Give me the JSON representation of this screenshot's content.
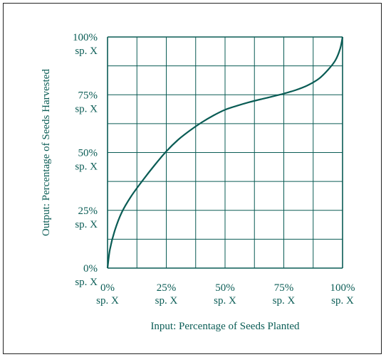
{
  "colors": {
    "line": "#0a5c55",
    "text": "#0a5c55",
    "frame": "#222222"
  },
  "chart_data": {
    "type": "line",
    "xlabel": "Input:  Percentage of Seeds Planted",
    "ylabel": "Output:  Percentage of Seeds Harvested",
    "xlim": [
      0,
      100
    ],
    "ylim": [
      0,
      100
    ],
    "grid": true,
    "x_ticks": [
      {
        "value": 0,
        "pct": "0%",
        "unit": "sp. X"
      },
      {
        "value": 25,
        "pct": "25%",
        "unit": "sp. X"
      },
      {
        "value": 50,
        "pct": "50%",
        "unit": "sp. X"
      },
      {
        "value": 75,
        "pct": "75%",
        "unit": "sp. X"
      },
      {
        "value": 100,
        "pct": "100%",
        "unit": "sp. X"
      }
    ],
    "y_ticks": [
      {
        "value": 0,
        "pct": "0%",
        "unit": "sp. X"
      },
      {
        "value": 25,
        "pct": "25%",
        "unit": "sp. X"
      },
      {
        "value": 50,
        "pct": "50%",
        "unit": "sp. X"
      },
      {
        "value": 75,
        "pct": "75%",
        "unit": "sp. X"
      },
      {
        "value": 100,
        "pct": "100%",
        "unit": "sp. X"
      }
    ],
    "series": [
      {
        "x": [
          0,
          1,
          3,
          6,
          10,
          15,
          20,
          25,
          30,
          35,
          40,
          45,
          50,
          55,
          60,
          65,
          70,
          75,
          80,
          85,
          90,
          94,
          97,
          99,
          100
        ],
        "y": [
          0,
          8,
          16,
          24,
          31,
          38,
          44.5,
          50.5,
          55.5,
          59.5,
          63,
          66,
          68.5,
          70.2,
          71.7,
          73,
          74.2,
          75.5,
          77,
          79,
          82,
          86,
          90,
          95,
          100
        ]
      }
    ]
  }
}
